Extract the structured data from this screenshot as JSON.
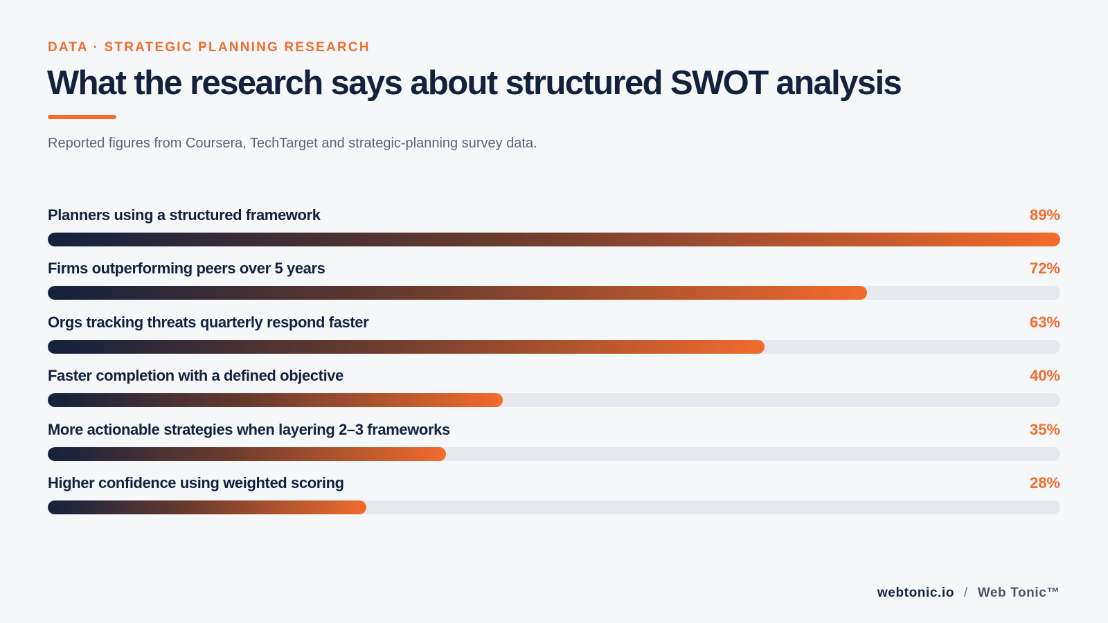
{
  "eyebrow": "DATA · STRATEGIC PLANNING RESEARCH",
  "title": "What the research says about structured SWOT analysis",
  "subtitle": "Reported figures from Coursera, TechTarget and strategic-planning survey data.",
  "colors": {
    "accent": "#f26b2d",
    "navy": "#14213d",
    "track": "#e6e8ed",
    "background": "#f6f7f9"
  },
  "chart_data": {
    "type": "bar",
    "orientation": "horizontal",
    "categories": [
      "Planners using a structured framework",
      "Firms outperforming peers over 5 years",
      "Orgs tracking threats quarterly respond faster",
      "Faster completion with a defined objective",
      "More actionable strategies when layering 2–3 frameworks",
      "Higher confidence using weighted scoring"
    ],
    "values": [
      89,
      72,
      63,
      40,
      35,
      28
    ],
    "value_labels": [
      "89%",
      "72%",
      "63%",
      "40%",
      "35%",
      "28%"
    ],
    "xlim": [
      0,
      89
    ],
    "grid": false
  },
  "footer": {
    "domain": "webtonic.io",
    "separator": "/",
    "brand": "Web Tonic™"
  }
}
